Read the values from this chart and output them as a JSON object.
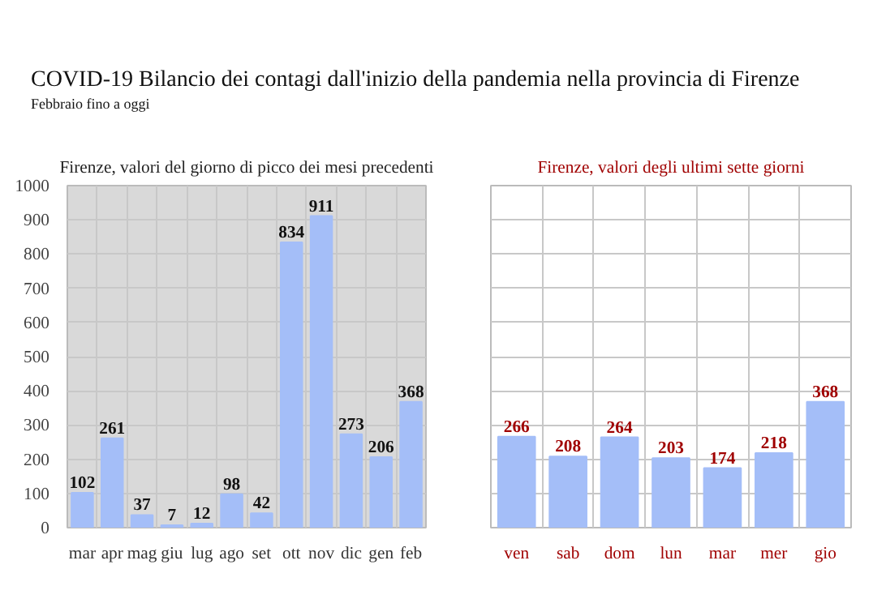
{
  "chart_data": [
    {
      "type": "bar",
      "title": "Firenze, valori del giorno di picco dei mesi precedenti",
      "annotations": [
        "COVID-19 Bilancio dei contagi dall'inizio della pandemia nella provincia di Firenze",
        "Febbraio fino a oggi"
      ],
      "categories": [
        "mar",
        "apr",
        "mag",
        "giu",
        "lug",
        "ago",
        "set",
        "ott",
        "nov",
        "dic",
        "gen",
        "feb"
      ],
      "values": [
        102,
        261,
        37,
        7,
        12,
        98,
        42,
        834,
        911,
        273,
        206,
        368
      ],
      "color": "#a4bef8",
      "ylim": [
        0,
        1000
      ],
      "yticks": [
        0,
        100,
        200,
        300,
        400,
        500,
        600,
        700,
        800,
        900,
        1000
      ],
      "grid": true,
      "data_labels": true
    },
    {
      "type": "bar",
      "title": "Firenze, valori degli ultimi sette giorni",
      "categories": [
        "ven",
        "sab",
        "dom",
        "lun",
        "mar",
        "mer",
        "gio"
      ],
      "values": [
        266,
        208,
        264,
        203,
        174,
        218,
        368
      ],
      "color": "#a4bef8",
      "ylim": [
        0,
        1000
      ],
      "yticks": [
        0,
        100,
        200,
        300,
        400,
        500,
        600,
        700,
        800,
        900,
        1000
      ],
      "grid": true,
      "data_labels": true,
      "tick_labels": "x"
    }
  ]
}
